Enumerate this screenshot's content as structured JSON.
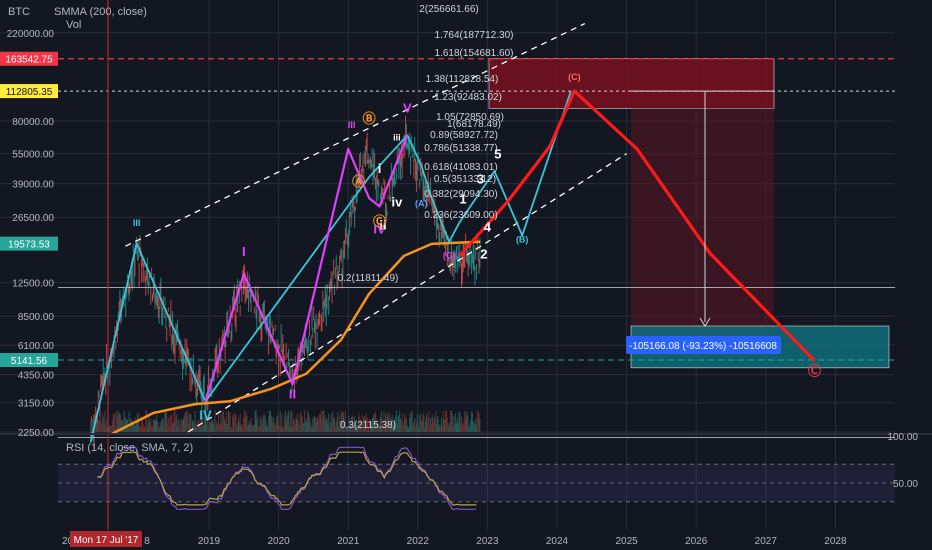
{
  "legend": {
    "symbol": "BTC",
    "smma": "SMMA (200, close)",
    "vol": "Vol"
  },
  "rsi_legend": "RSI (14, close, SMA, 7, 2)",
  "colors": {
    "bg": "#131722",
    "grid": "#2a2e39",
    "candle_up": "#26a69a",
    "candle_down": "#ef5350",
    "smma": "#f7931a",
    "wave_cyan": "#38c6d9",
    "wave_magenta": "#e040fb",
    "projection": "#ff1a1a",
    "channel": "#ffffff",
    "rsi": "#b8a24a",
    "rsi_band": "#7e57c2",
    "target_box": "#0f6d7a",
    "upper_box": "#7a1020"
  },
  "chart_data": {
    "type": "line",
    "title": "",
    "price_axis": {
      "scale": "log",
      "ticks": [
        220000,
        80000,
        55000,
        39000,
        26500,
        12500,
        8500,
        6100,
        4350,
        3150,
        2250
      ],
      "tick_labels": [
        "220000.00",
        "80000.00",
        "55000.00",
        "39000.00",
        "26500.00",
        "12500.00",
        "8500.00",
        "6100.00",
        "4350.00",
        "3150.00",
        "2250.00"
      ]
    },
    "time_axis": {
      "labels": [
        "2019",
        "2020",
        "2021",
        "2022",
        "2023",
        "2024",
        "2025",
        "2026",
        "2027",
        "2028"
      ],
      "left_cut": "20",
      "cursor_label": "Mon 17 Jul '17",
      "cursor_suffix": "8"
    },
    "price_tags": [
      {
        "value": 163542.75,
        "label": "163542.75",
        "color": "#f23645",
        "line": "dashed-red"
      },
      {
        "value": 112805.35,
        "label": "112805.35",
        "color": "#ffeb3b",
        "line": "dotted-white"
      },
      {
        "value": 19573.53,
        "label": "19573.53",
        "color": "#26a69a",
        "line": "none"
      },
      {
        "value": 5141.56,
        "label": "5141.56",
        "color": "#26a69a",
        "line": "dashed-teal"
      }
    ],
    "fib_levels": [
      {
        "label": "2(256661.66)"
      },
      {
        "label": "1.764(187712.30)"
      },
      {
        "label": "1.618(154681.60)"
      },
      {
        "label": "1.38(112828.54)"
      },
      {
        "label": "1.23(92483.02)"
      },
      {
        "label": "1.05(72850.69)"
      },
      {
        "label": "1(68178.49)"
      },
      {
        "label": "0.89(58927.72)"
      },
      {
        "label": "0.786(51338.77)"
      },
      {
        "label": "0.618(41083.01)"
      },
      {
        "label": "0.5(35133.12)"
      },
      {
        "label": "0.382(29094.30)"
      },
      {
        "label": "0.236(23609.00)"
      },
      {
        "label": "0.2(11811.49)"
      },
      {
        "label": "0.3(2115.38)"
      }
    ],
    "series": [
      {
        "name": "SMMA (200, close)",
        "x": [
          2017.6,
          2018.2,
          2018.8,
          2019.3,
          2019.9,
          2020.4,
          2020.9,
          2021.3,
          2021.8,
          2022.2,
          2022.6,
          2022.9
        ],
        "values": [
          2200,
          2800,
          3100,
          3200,
          3700,
          4400,
          6500,
          11000,
          17000,
          19500,
          19800,
          20000
        ]
      },
      {
        "name": "wave-cyan",
        "x": [
          2017.3,
          2017.96,
          2018.95,
          2021.3,
          2021.85,
          2022.05,
          2022.2,
          2022.45,
          2022.6,
          2023.1,
          2023.5,
          2024.2
        ],
        "values": [
          2000,
          19600,
          3200,
          42000,
          68000,
          48000,
          33000,
          20000,
          25000,
          45000,
          21500,
          112800
        ]
      },
      {
        "name": "wave-magenta",
        "x": [
          2018.95,
          2019.5,
          2020.2,
          2021.0,
          2021.3,
          2021.45,
          2021.85
        ],
        "values": [
          3200,
          13800,
          3900,
          58000,
          33000,
          30000,
          68000
        ]
      },
      {
        "name": "projection",
        "x": [
          2022.6,
          2023.3,
          2023.9,
          2024.25,
          2025.15,
          2026.2,
          2027.7
        ],
        "values": [
          17000,
          32000,
          60000,
          112800,
          58000,
          17500,
          5100
        ]
      }
    ],
    "wave_labels": [
      {
        "text": "III",
        "x": 2017.96,
        "y": 24000,
        "color": "#38c6d9"
      },
      {
        "text": "IV",
        "x": 2018.95,
        "y": 2600,
        "color": "#38c6d9"
      },
      {
        "text": "I",
        "x": 2019.5,
        "y": 17000,
        "color": "#e040fb"
      },
      {
        "text": "II",
        "x": 2020.2,
        "y": 3300,
        "color": "#e040fb"
      },
      {
        "text": "III",
        "x": 2021.05,
        "y": 74000,
        "color": "#e040fb"
      },
      {
        "text": "IV",
        "x": 2021.45,
        "y": 22000,
        "color": "#e040fb"
      },
      {
        "text": "V",
        "x": 2021.85,
        "y": 88000,
        "color": "#e040fb"
      },
      {
        "text": "iii",
        "x": 2021.7,
        "y": 64000,
        "color": "#ffffff"
      },
      {
        "text": "iv",
        "x": 2021.7,
        "y": 30000,
        "color": "#ffffff"
      },
      {
        "text": "i",
        "x": 2021.45,
        "y": 44000,
        "color": "#ffffff"
      },
      {
        "text": "ii",
        "x": 2021.5,
        "y": 23000,
        "color": "#ffffff"
      },
      {
        "text": "5",
        "x": 2023.15,
        "y": 52000,
        "color": "#ffffff"
      },
      {
        "text": "3",
        "x": 2022.9,
        "y": 39000,
        "color": "#ffffff"
      },
      {
        "text": "1",
        "x": 2022.65,
        "y": 31000,
        "color": "#ffffff"
      },
      {
        "text": "4",
        "x": 2023.0,
        "y": 22500,
        "color": "#ffffff"
      },
      {
        "text": "2",
        "x": 2022.95,
        "y": 16500,
        "color": "#ffffff"
      },
      {
        "text": "(A)",
        "x": 2022.05,
        "y": 30000,
        "color": "#5b9cf6"
      },
      {
        "text": "(B)",
        "x": 2023.5,
        "y": 19800,
        "color": "#38c6d9"
      },
      {
        "text": "(C)",
        "x": 2022.45,
        "y": 16500,
        "color": "#e040fb"
      },
      {
        "text": "(C)",
        "x": 2024.25,
        "y": 128000,
        "color": "#ff6b6b"
      },
      {
        "text": "Ⓐ",
        "x": 2021.15,
        "y": 38000,
        "color": "#f7931a"
      },
      {
        "text": "Ⓑ",
        "x": 2021.3,
        "y": 78000,
        "color": "#f7931a"
      },
      {
        "text": "Ⓒ",
        "x": 2021.45,
        "y": 24000,
        "color": "#f7931a"
      },
      {
        "text": "Ⓒ",
        "x": 2027.7,
        "y": 4300,
        "color": "#f23645"
      }
    ],
    "measure_label": "-105166.08 (-93.23%) -10516608",
    "rsi": {
      "ylim": [
        0,
        100
      ],
      "ticks": [
        100,
        50
      ],
      "upper": 70,
      "lower": 30
    }
  }
}
